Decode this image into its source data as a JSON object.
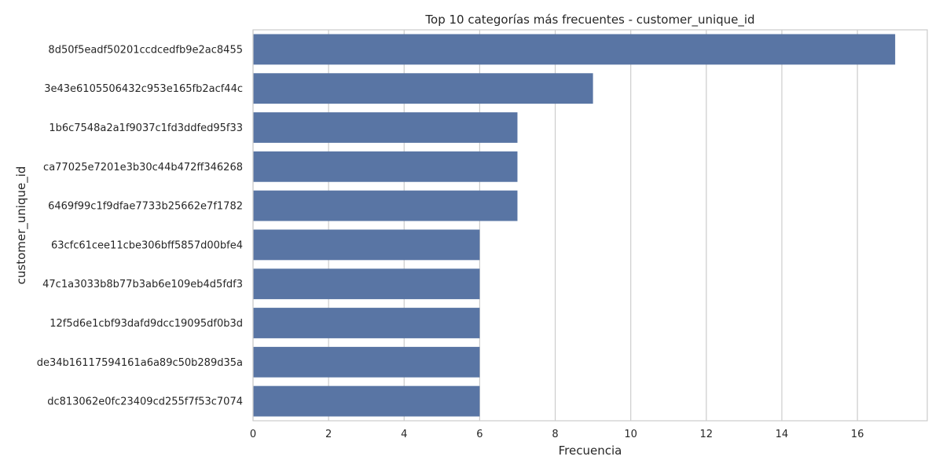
{
  "chart_data": {
    "type": "bar",
    "orientation": "horizontal",
    "title": "Top 10 categorías más frecuentes - customer_unique_id",
    "xlabel": "Frecuencia",
    "ylabel": "customer_unique_id",
    "xlim": [
      0,
      17.85
    ],
    "xticks": [
      0,
      2,
      4,
      6,
      8,
      10,
      12,
      14,
      16
    ],
    "grid": "vertical",
    "bar_color": "#5975a4",
    "categories": [
      "8d50f5eadf50201ccdcedfb9e2ac8455",
      "3e43e6105506432c953e165fb2acf44c",
      "1b6c7548a2a1f9037c1fd3ddfed95f33",
      "ca77025e7201e3b30c44b472ff346268",
      "6469f99c1f9dfae7733b25662e7f1782",
      "63cfc61cee11cbe306bff5857d00bfe4",
      "47c1a3033b8b77b3ab6e109eb4d5fdf3",
      "12f5d6e1cbf93dafd9dcc19095df0b3d",
      "de34b16117594161a6a89c50b289d35a",
      "dc813062e0fc23409cd255f7f53c7074"
    ],
    "values": [
      17,
      9,
      7,
      7,
      7,
      6,
      6,
      6,
      6,
      6
    ]
  }
}
